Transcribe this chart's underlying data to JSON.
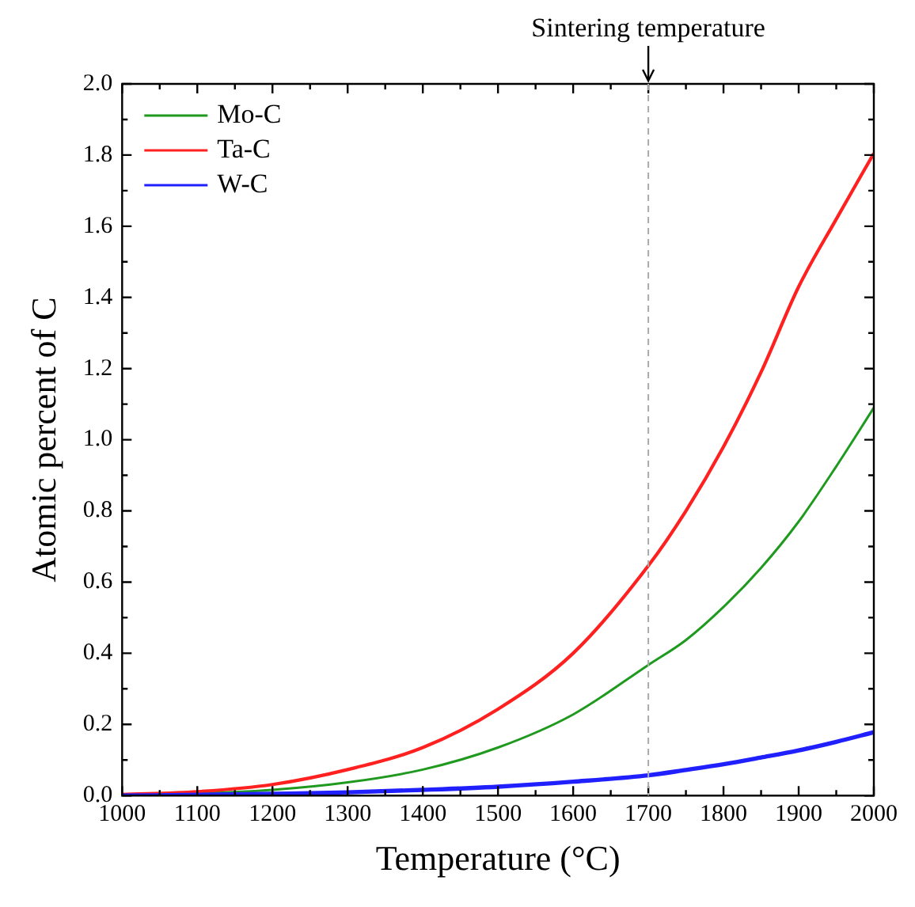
{
  "chart_data": {
    "type": "line",
    "xlabel": "Temperature (°C)",
    "ylabel": "Atomic percent of C",
    "x": [
      1000,
      1100,
      1200,
      1300,
      1400,
      1500,
      1600,
      1700,
      1750,
      1800,
      1850,
      1900,
      1950,
      2000
    ],
    "series": [
      {
        "name": "Mo-C",
        "color": "#1f9a1f",
        "values": [
          0.002,
          0.006,
          0.016,
          0.037,
          0.073,
          0.135,
          0.228,
          0.367,
          0.437,
          0.53,
          0.64,
          0.77,
          0.925,
          1.09
        ]
      },
      {
        "name": "Ta-C",
        "color": "#ff2020",
        "values": [
          0.003,
          0.011,
          0.031,
          0.073,
          0.135,
          0.243,
          0.4,
          0.646,
          0.8,
          0.98,
          1.19,
          1.43,
          1.62,
          1.805
        ]
      },
      {
        "name": "W-C",
        "color": "#2020ff",
        "values": [
          0,
          0.002,
          0.005,
          0.009,
          0.016,
          0.025,
          0.039,
          0.057,
          0.072,
          0.088,
          0.107,
          0.127,
          0.151,
          0.178
        ]
      }
    ],
    "xlim": [
      1000,
      2000
    ],
    "xticks": [
      1000,
      1100,
      1200,
      1300,
      1400,
      1500,
      1600,
      1700,
      1800,
      1900,
      2000
    ],
    "ylim": [
      0,
      2
    ],
    "yticks": [
      {
        "value": 0,
        "label": "0.0"
      },
      {
        "value": 0.2,
        "label": "0.2"
      },
      {
        "value": 0.4,
        "label": "0.4"
      },
      {
        "value": 0.6,
        "label": "0.6"
      },
      {
        "value": 0.8,
        "label": "0.8"
      },
      {
        "value": 1,
        "label": "1.0"
      },
      {
        "value": 1.2,
        "label": "1.2"
      },
      {
        "value": 1.4,
        "label": "1.4"
      },
      {
        "value": 1.6,
        "label": "1.6"
      },
      {
        "value": 1.8,
        "label": "1.8"
      },
      {
        "value": 2,
        "label": "2.0"
      }
    ],
    "ref_lines": [
      {
        "axis": "x",
        "value": 1700,
        "label": "Sintering temperature",
        "color": "#aaaaaa",
        "line_style": "dashed"
      }
    ],
    "grid": false,
    "legend": "top left",
    "marker": "none",
    "line_style": "solid"
  }
}
